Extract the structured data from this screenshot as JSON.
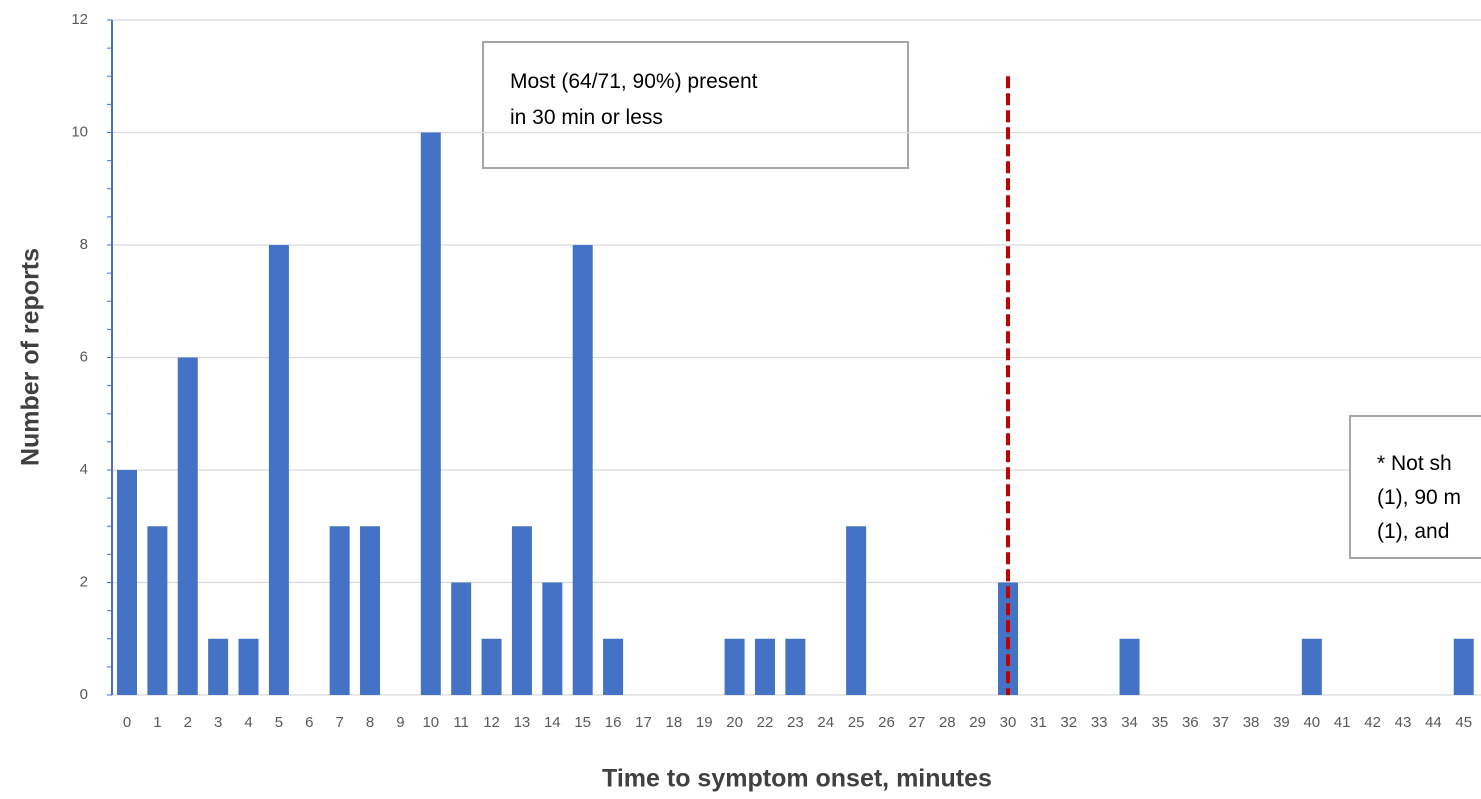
{
  "chart_data": {
    "type": "bar",
    "xlabel": "Time to symptom onset, minutes",
    "ylabel": "Number of reports",
    "categories": [
      "0",
      "1",
      "2",
      "3",
      "4",
      "5",
      "6",
      "7",
      "8",
      "9",
      "10",
      "11",
      "12",
      "13",
      "14",
      "15",
      "16",
      "17",
      "18",
      "19",
      "20",
      "22",
      "23",
      "24",
      "25",
      "26",
      "27",
      "28",
      "29",
      "30",
      "31",
      "32",
      "33",
      "34",
      "35",
      "36",
      "37",
      "38",
      "39",
      "40",
      "41",
      "42",
      "43",
      "44",
      "45"
    ],
    "values": [
      4,
      3,
      6,
      1,
      1,
      8,
      0,
      3,
      3,
      0,
      10,
      2,
      1,
      3,
      2,
      8,
      1,
      0,
      0,
      0,
      1,
      1,
      1,
      0,
      3,
      0,
      0,
      0,
      0,
      2,
      0,
      0,
      0,
      1,
      0,
      0,
      0,
      0,
      0,
      1,
      0,
      0,
      0,
      0,
      1
    ],
    "color": "#4472c4",
    "ylim": [
      0,
      12
    ],
    "yticks": [
      0,
      2,
      4,
      6,
      8,
      10,
      12
    ],
    "grid": true,
    "reference_line": {
      "category": "30",
      "y": 11,
      "color": "#c00000"
    },
    "annotations": [
      {
        "lines": [
          "Most (64/71, 90%) present",
          "in 30 min or less"
        ]
      },
      {
        "lines": [
          "* Not sh",
          "(1), 90 m",
          "(1), and"
        ]
      }
    ]
  }
}
